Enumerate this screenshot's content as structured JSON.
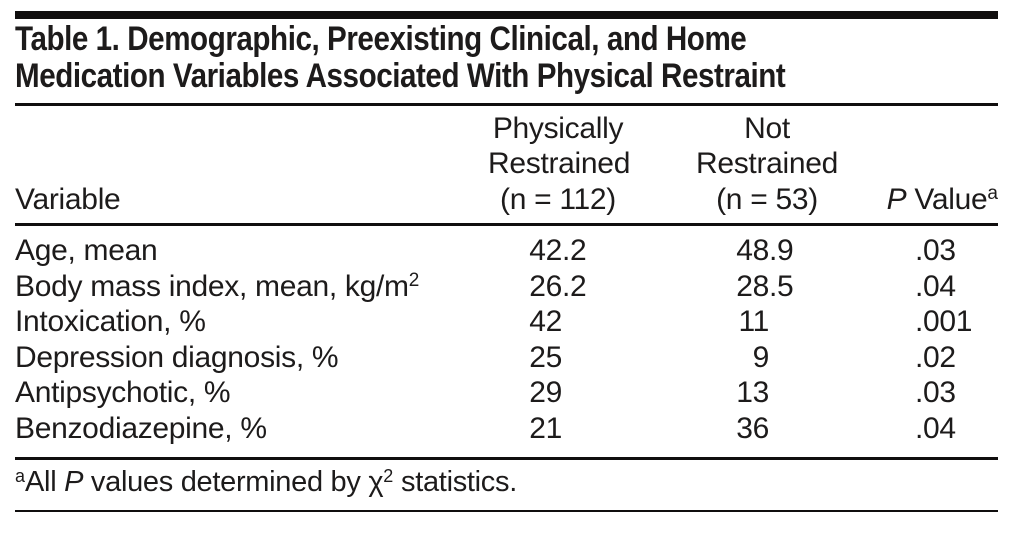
{
  "title": {
    "line1": "Table 1. Demographic, Preexisting Clinical, and Home",
    "line2": "Medication Variables Associated With Physical Restraint"
  },
  "header": {
    "variable": "Variable",
    "group_restrained": {
      "line1": "Physically",
      "line2": "Restrained",
      "line3": "(n = 112)"
    },
    "group_not_restrained": {
      "line1": "Not",
      "line2": "Restrained",
      "line3": "(n = 53)"
    },
    "p_column": {
      "italic": "P",
      "rest": " Value",
      "sup": "a"
    }
  },
  "rows": [
    {
      "label": "Age, mean",
      "restrained": "42.2",
      "not_restrained": "48.9",
      "p_value": ".03"
    },
    {
      "label": "Body mass index, mean, kg/m",
      "label_sup": "2",
      "restrained": "26.2",
      "not_restrained": "28.5",
      "p_value": ".04"
    },
    {
      "label": "Intoxication, %",
      "restrained": "42",
      "not_restrained": "11",
      "p_value": ".001"
    },
    {
      "label": "Depression diagnosis, %",
      "restrained": "25",
      "not_restrained": "9",
      "p_value": ".02"
    },
    {
      "label": "Antipsychotic, %",
      "restrained": "29",
      "not_restrained": "13",
      "p_value": ".03"
    },
    {
      "label": "Benzodiazepine, %",
      "restrained": "21",
      "not_restrained": "36",
      "p_value": ".04"
    }
  ],
  "footnote": {
    "sup_marker": "a",
    "pre": "All ",
    "p_italic": "P",
    "mid": " values determined by χ",
    "sup_exp": "2",
    "post": " statistics."
  },
  "colors": {
    "text": "#1d1b1b",
    "rule": "#100e0e",
    "background": "#ffffff"
  }
}
